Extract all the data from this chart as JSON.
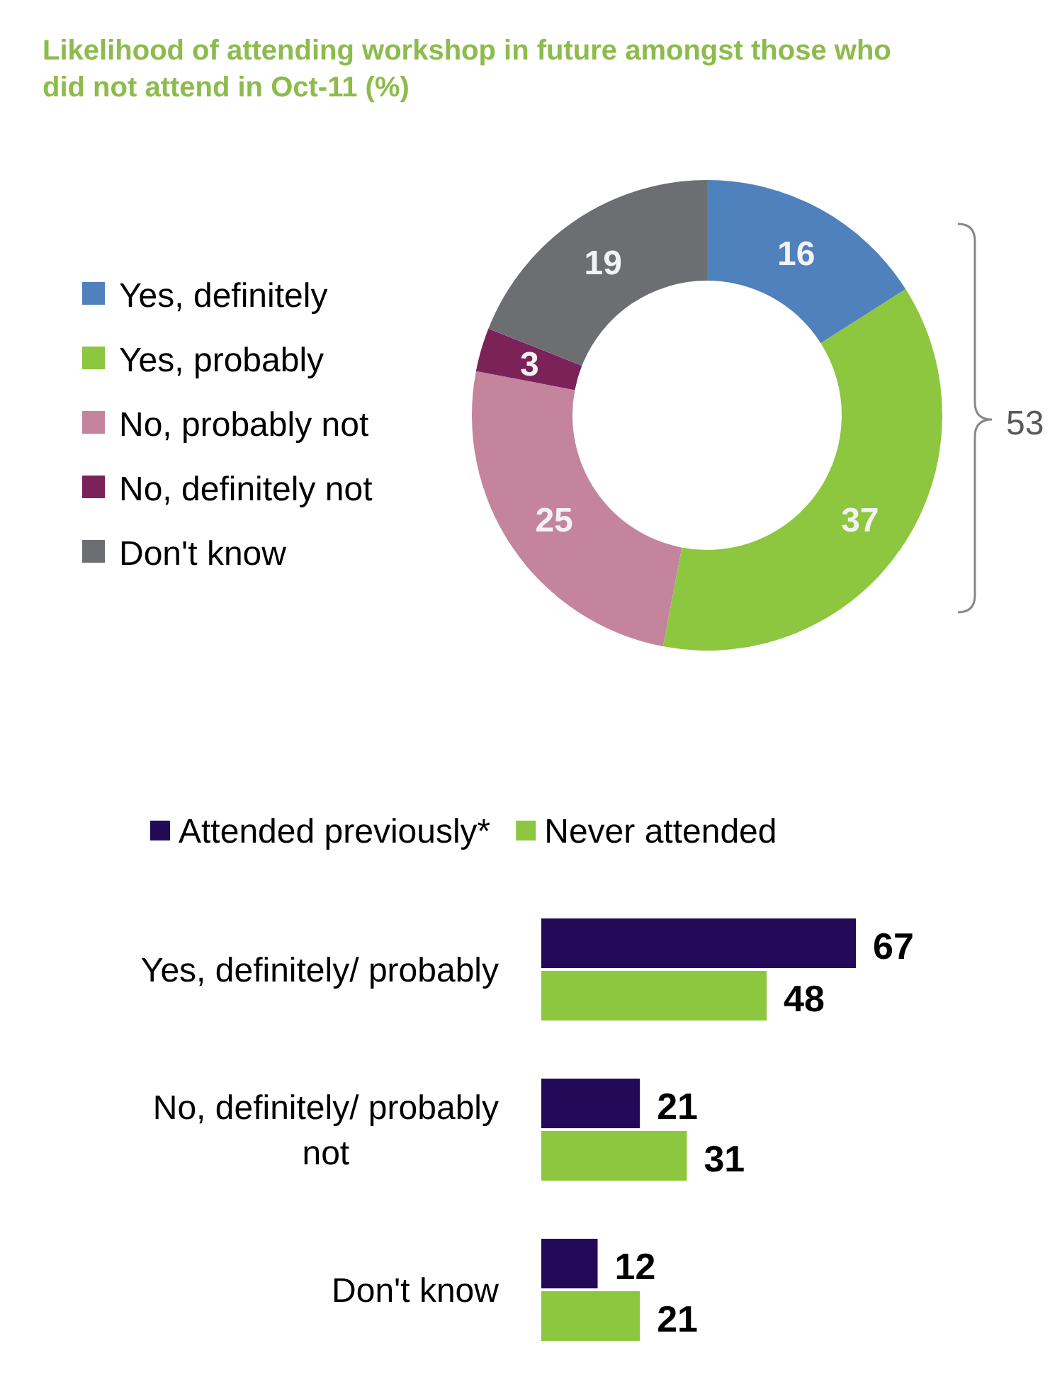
{
  "chart_data": [
    {
      "type": "donut",
      "title": "Likelihood of attending workshop in future amongst those who did not attend in Oct-11 (%)",
      "categories": [
        "Yes, definitely",
        "Yes, probably",
        "No, probably not",
        "No, definitely not",
        "Don't know"
      ],
      "values": [
        16,
        37,
        25,
        3,
        19
      ],
      "colors": [
        "#4f81bd",
        "#8dc63f",
        "#c4849c",
        "#7b2259",
        "#6d6e71"
      ],
      "data_labels": true,
      "legend": "left",
      "annotations": [
        "53"
      ]
    },
    {
      "type": "bar",
      "orientation": "horizontal",
      "categories": [
        "Yes, definitely/ probably",
        "No, definitely/ probably not",
        "Don't know"
      ],
      "series": [
        {
          "name": "Attended previously*",
          "color": "#230a59",
          "values": [
            67,
            21,
            12
          ]
        },
        {
          "name": "Never attended",
          "color": "#8dc63f",
          "values": [
            48,
            31,
            21
          ]
        }
      ],
      "data_labels": true,
      "legend": "top"
    }
  ]
}
